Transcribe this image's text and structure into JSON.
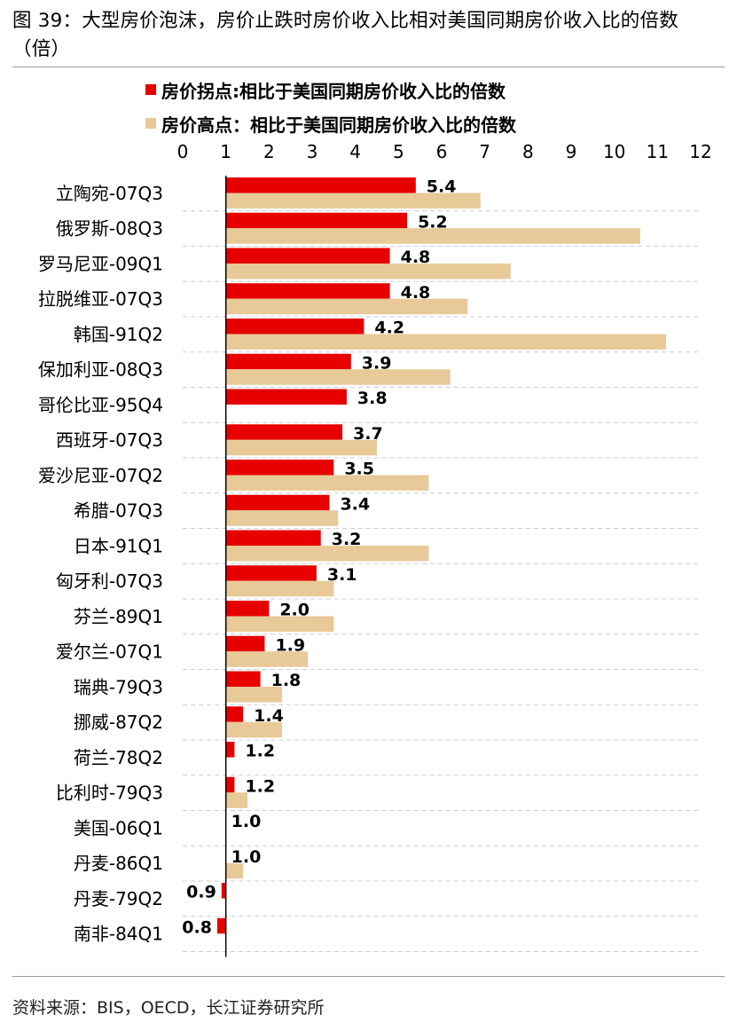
{
  "title": "图 39：大型房价泡沫，房价止跌时房价收入比相对美国同期房价收入比的倍数（倍）",
  "source": "资料来源：BIS，OECD，长江证券研究所",
  "colors": {
    "inflection": "#e60000",
    "peak": "#e8c998",
    "grid": "#cccccc",
    "axis": "#000000"
  },
  "chart_data": {
    "type": "bar",
    "orientation": "horizontal",
    "xlim": [
      0,
      12
    ],
    "x_ticks": [
      "0",
      "1",
      "2",
      "3",
      "4",
      "5",
      "6",
      "7",
      "8",
      "9",
      "10",
      "11",
      "12"
    ],
    "baseline": 1,
    "categories": [
      "立陶宛-07Q3",
      "俄罗斯-08Q3",
      "罗马尼亚-09Q1",
      "拉脱维亚-07Q3",
      "韩国-91Q2",
      "保加利亚-08Q3",
      "哥伦比亚-95Q4",
      "西班牙-07Q3",
      "爱沙尼亚-07Q2",
      "希腊-07Q3",
      "日本-91Q1",
      "匈牙利-07Q3",
      "芬兰-89Q1",
      "爱尔兰-07Q1",
      "瑞典-79Q3",
      "挪威-87Q2",
      "荷兰-78Q2",
      "比利时-79Q3",
      "美国-06Q1",
      "丹麦-86Q1",
      "丹麦-79Q2",
      "南非-84Q1"
    ],
    "series": [
      {
        "name": "房价拐点:相比于美国同期房价收入比的倍数",
        "color": "#e60000",
        "values": [
          5.4,
          5.2,
          4.8,
          4.8,
          4.2,
          3.9,
          3.8,
          3.7,
          3.5,
          3.4,
          3.2,
          3.1,
          2.0,
          1.9,
          1.8,
          1.4,
          1.2,
          1.2,
          1.0,
          1.0,
          0.9,
          0.8
        ],
        "labels": [
          "5.4",
          "5.2",
          "4.8",
          "4.8",
          "4.2",
          "3.9",
          "3.8",
          "3.7",
          "3.5",
          "3.4",
          "3.2",
          "3.1",
          "2.0",
          "1.9",
          "1.8",
          "1.4",
          "1.2",
          "1.2",
          "1.0",
          "1.0",
          "0.9",
          "0.8"
        ]
      },
      {
        "name": "房价高点：相比于美国同期房价收入比的倍数",
        "color": "#e8c998",
        "values": [
          6.9,
          10.6,
          7.6,
          6.6,
          11.2,
          6.2,
          null,
          4.5,
          5.7,
          3.6,
          5.7,
          3.5,
          3.5,
          2.9,
          2.3,
          2.3,
          null,
          1.5,
          null,
          1.4,
          null,
          null
        ]
      }
    ],
    "grid": "horizontal dashed",
    "legend_position": "top"
  }
}
